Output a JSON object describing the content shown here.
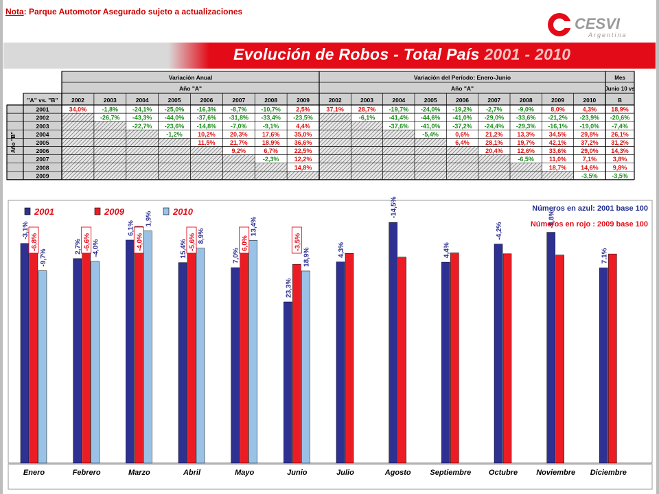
{
  "header": {
    "note_label": "Nota",
    "note_text": ": Parque Automotor Asegurado sujeto a actualizaciones",
    "logo_main": "CESVI",
    "logo_sub": "Argentina",
    "title": "Evolución de Robos - Total País",
    "title_years": "2001 - 2010"
  },
  "table": {
    "corner_label": "\"A\" vs. \"B\"",
    "row_axis_label": "Año \"B\"",
    "group_annual": "Variación Anual",
    "group_annual_sub": "Año \"A\"",
    "group_period": "Variación del Período: Enero-Junio",
    "group_period_sub": "Año \"A\"",
    "group_month_line1": "Mes",
    "group_month_line2": "Junio 10 vs",
    "group_month_line3": "B",
    "annual_years": [
      "2002",
      "2003",
      "2004",
      "2005",
      "2006",
      "2007",
      "2008",
      "2009"
    ],
    "period_years": [
      "2002",
      "2003",
      "2004",
      "2005",
      "2006",
      "2007",
      "2008",
      "2009",
      "2010"
    ],
    "rows": [
      {
        "year": "2001",
        "annual": [
          "34,0%",
          "-1,8%",
          "-24,1%",
          "-25,0%",
          "-16,3%",
          "-8,7%",
          "-10,7%",
          "2,5%"
        ],
        "period": [
          "37,1%",
          "28,7%",
          "-19,7%",
          "-24,0%",
          "-19,2%",
          "-2,7%",
          "-9,0%",
          "8,0%",
          "4,3%"
        ],
        "month": "18,9%"
      },
      {
        "year": "2002",
        "annual": [
          "",
          "-26,7%",
          "-43,3%",
          "-44,0%",
          "-37,6%",
          "-31,8%",
          "-33,4%",
          "-23,5%"
        ],
        "period": [
          "",
          "-6,1%",
          "-41,4%",
          "-44,6%",
          "-41,0%",
          "-29,0%",
          "-33,6%",
          "-21,2%",
          "-23,9%"
        ],
        "month": "-20,6%"
      },
      {
        "year": "2003",
        "annual": [
          "",
          "",
          "-22,7%",
          "-23,6%",
          "-14,8%",
          "-7,0%",
          "-9,1%",
          "4,4%"
        ],
        "period": [
          "",
          "",
          "-37,6%",
          "-41,0%",
          "-37,2%",
          "-24,4%",
          "-29,3%",
          "-16,1%",
          "-19,0%"
        ],
        "month": "-7,4%"
      },
      {
        "year": "2004",
        "annual": [
          "",
          "",
          "",
          "-1,2%",
          "10,2%",
          "20,3%",
          "17,6%",
          "35,0%"
        ],
        "period": [
          "",
          "",
          "",
          "-5,4%",
          "0,6%",
          "21,2%",
          "13,3%",
          "34,5%",
          "29,8%"
        ],
        "month": "26,1%"
      },
      {
        "year": "2005",
        "annual": [
          "",
          "",
          "",
          "",
          "11,5%",
          "21,7%",
          "18,9%",
          "36,6%"
        ],
        "period": [
          "",
          "",
          "",
          "",
          "6,4%",
          "28,1%",
          "19,7%",
          "42,1%",
          "37,2%"
        ],
        "month": "31,2%"
      },
      {
        "year": "2006",
        "annual": [
          "",
          "",
          "",
          "",
          "",
          "9,2%",
          "6,7%",
          "22,5%"
        ],
        "period": [
          "",
          "",
          "",
          "",
          "",
          "20,4%",
          "12,6%",
          "33,6%",
          "29,0%"
        ],
        "month": "14,3%"
      },
      {
        "year": "2007",
        "annual": [
          "",
          "",
          "",
          "",
          "",
          "",
          "-2,3%",
          "12,2%"
        ],
        "period": [
          "",
          "",
          "",
          "",
          "",
          "",
          "-6,5%",
          "11,0%",
          "7,1%"
        ],
        "month": "3,8%"
      },
      {
        "year": "2008",
        "annual": [
          "",
          "",
          "",
          "",
          "",
          "",
          "",
          "14,8%"
        ],
        "period": [
          "",
          "",
          "",
          "",
          "",
          "",
          "",
          "18,7%",
          "14,6%"
        ],
        "month": "9,8%"
      },
      {
        "year": "2009",
        "annual": [
          "",
          "",
          "",
          "",
          "",
          "",
          "",
          ""
        ],
        "period": [
          "",
          "",
          "",
          "",
          "",
          "",
          "",
          "",
          "-3,5%"
        ],
        "month": "-3,5%"
      }
    ],
    "colors": {
      "negative": "#1a8c1a",
      "positive": "#e01010",
      "header_bg": "#d0d0d0"
    }
  },
  "chart_data": {
    "type": "bar",
    "categories": [
      "Enero",
      "Febrero",
      "Marzo",
      "Abril",
      "Mayo",
      "Junio",
      "Julio",
      "Agosto",
      "Septiembre",
      "Octubre",
      "Noviembre",
      "Diciembre"
    ],
    "series": [
      {
        "name": "2001",
        "color": "#2e3192",
        "values": [
          104.5,
          97.3,
          106.1,
          95.4,
          93.0,
          76.7,
          95.7,
          114.5,
          95.6,
          104.2,
          109.8,
          92.9
        ]
      },
      {
        "name": "2009",
        "color": "#ed1c24",
        "values": [
          101.3,
          100.0,
          112.6,
          110.1,
          100.1,
          94.6,
          99.8,
          98.0,
          100.0,
          99.6,
          99.0,
          99.5
        ]
      },
      {
        "name": "2010",
        "color": "#99c2e6",
        "values": [
          91.5,
          96.0,
          110.5,
          102.3,
          106.0,
          91.4,
          null,
          null,
          null,
          null,
          null,
          null
        ]
      }
    ],
    "legend": [
      "2001",
      "2009",
      "2010"
    ],
    "legend_position": "top-left",
    "labels_2001_base": [
      "-3,1%",
      "2,7%",
      "6,1%",
      "15,4%",
      "7,0%",
      "23,3%",
      "4,3%",
      "-14,5%",
      "4,4%",
      "-4,2%",
      "-9,8%",
      "7,1%"
    ],
    "labels_2010_vs_2001": [
      "-9,7%",
      "-4,0%",
      "1,9%",
      "8,9%",
      "13,4%",
      "18,9%",
      null,
      null,
      null,
      null,
      null,
      null
    ],
    "labels_2010_vs_2009": [
      "-6,8%",
      "-6,6%",
      "-4,0%",
      "-5,6%",
      "6,0%",
      "-3,5%",
      null,
      null,
      null,
      null,
      null,
      null
    ],
    "note_blue": "Números en azul: 2001 base 100",
    "note_red": "Números en rojo : 2009 base 100",
    "ylim": [
      0,
      125
    ],
    "grid": false
  }
}
